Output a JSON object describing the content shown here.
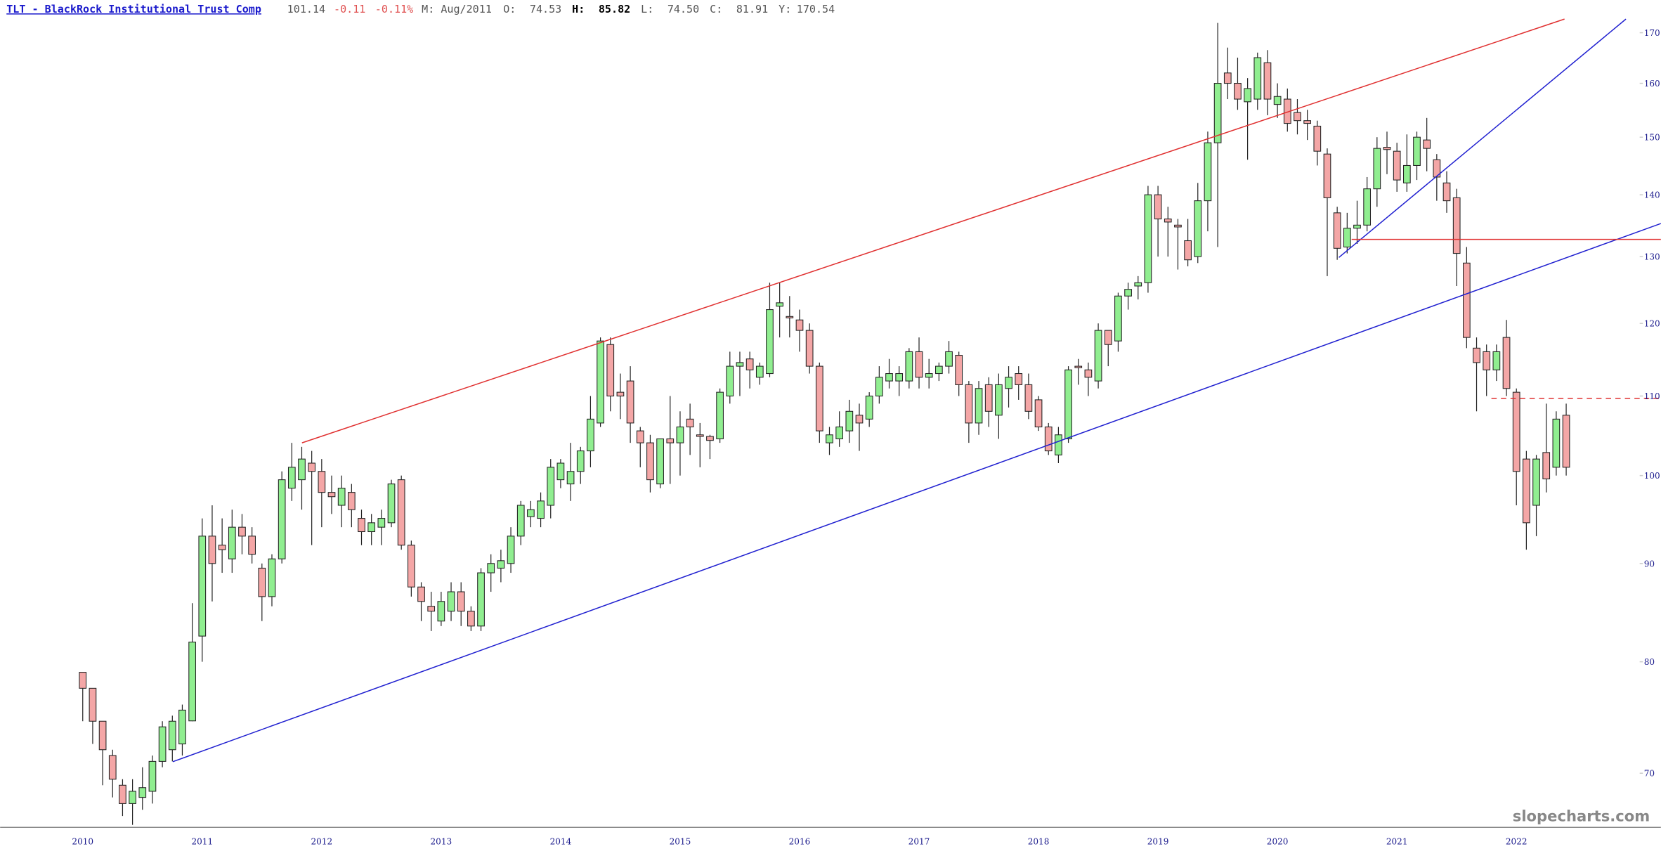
{
  "header": {
    "title": "TLT - BlackRock Institutional Trust Comp",
    "price": "101.14",
    "change": "-0.11",
    "change_pct": "-0.11%",
    "period": "M: Aug/2011",
    "open_label": "O:",
    "open": "74.53",
    "high_label": "H:",
    "high": "85.82",
    "low_label": "L:",
    "low": "74.50",
    "close_label": "C:",
    "close": "81.91",
    "year_label": "Y:",
    "year": "170.54"
  },
  "watermark": "slopecharts.com",
  "chart_data": {
    "type": "candlestick",
    "log_scale": true,
    "up_color": "#90ee90",
    "down_color": "#f4a6a6",
    "ylim": [
      65.6,
      176.8
    ],
    "yticks": [
      70,
      80,
      90,
      100,
      110,
      120,
      130,
      140,
      150,
      160,
      170
    ],
    "categories": [
      "2010",
      null,
      null,
      null,
      null,
      null,
      null,
      null,
      null,
      null,
      null,
      null,
      "2011",
      null,
      null,
      null,
      null,
      null,
      null,
      null,
      null,
      null,
      null,
      null,
      "2012",
      null,
      null,
      null,
      null,
      null,
      null,
      null,
      null,
      null,
      null,
      null,
      "2013",
      null,
      null,
      null,
      null,
      null,
      null,
      null,
      null,
      null,
      null,
      null,
      "2014",
      null,
      null,
      null,
      null,
      null,
      null,
      null,
      null,
      null,
      null,
      null,
      "2015",
      null,
      null,
      null,
      null,
      null,
      null,
      null,
      null,
      null,
      null,
      null,
      "2016",
      null,
      null,
      null,
      null,
      null,
      null,
      null,
      null,
      null,
      null,
      null,
      "2017",
      null,
      null,
      null,
      null,
      null,
      null,
      null,
      null,
      null,
      null,
      null,
      "2018",
      null,
      null,
      null,
      null,
      null,
      null,
      null,
      null,
      null,
      null,
      null,
      "2019",
      null,
      null,
      null,
      null,
      null,
      null,
      null,
      null,
      null,
      null,
      null,
      "2020",
      null,
      null,
      null,
      null,
      null,
      null,
      null,
      null,
      null,
      null,
      null,
      "2021",
      null,
      null,
      null,
      null,
      null,
      null,
      null,
      null,
      null,
      null,
      null,
      "2022",
      null,
      null,
      null,
      null,
      null
    ],
    "open": [
      79,
      77.5,
      74.5,
      71.5,
      69,
      67.5,
      68,
      68.5,
      71,
      72,
      72.5,
      74.53,
      82.5,
      93,
      92,
      90.5,
      94,
      93,
      89.5,
      86.5,
      90.5,
      98.5,
      99.5,
      101.5,
      100.5,
      98,
      96.5,
      98,
      95,
      93.5,
      94,
      94.5,
      99.5,
      92,
      87.5,
      85.5,
      84,
      85,
      87,
      85,
      83.5,
      89,
      89.5,
      90,
      93,
      95.2,
      95,
      96.5,
      99.5,
      99,
      100.5,
      103,
      106.5,
      117,
      110.5,
      112,
      105.5,
      104,
      99,
      104.5,
      104,
      107,
      105,
      104.8,
      104.5,
      110,
      114,
      115,
      112.5,
      113,
      122.5,
      121,
      120.5,
      119,
      114,
      104,
      104.5,
      105.5,
      107.5,
      107,
      110,
      112,
      112,
      112,
      116,
      112.5,
      113,
      114,
      115.5,
      111.5,
      106.5,
      111.5,
      107.5,
      111,
      113,
      111.5,
      109.5,
      106,
      102.5,
      104.5,
      114,
      113.5,
      112,
      119,
      117.5,
      124,
      125.5,
      126,
      140,
      136,
      135,
      132.5,
      130,
      139,
      149,
      162,
      160,
      156.5,
      157,
      164,
      156,
      157,
      154.5,
      153,
      152,
      147,
      137,
      131.5,
      134.5,
      135,
      141,
      148.2,
      147.5,
      142,
      145,
      149.5,
      146,
      142,
      139.5,
      129,
      116.5,
      116,
      113.5,
      118,
      110.5,
      102,
      96.5,
      102.8,
      101,
      107.5
    ],
    "high": [
      79,
      77.5,
      74.5,
      72,
      69.5,
      69.5,
      70.5,
      71.5,
      74.5,
      75,
      76,
      85.82,
      95,
      96.5,
      95,
      96,
      95.5,
      94,
      90,
      91,
      100.5,
      104,
      103.5,
      103,
      102,
      100,
      100,
      99,
      96,
      95.5,
      96,
      99.5,
      100,
      92.5,
      88,
      87,
      87,
      88,
      88,
      85.5,
      89.5,
      91,
      91.5,
      94,
      97,
      97,
      98,
      102,
      102,
      104,
      103.5,
      110,
      118,
      118,
      113,
      114,
      106,
      105,
      104.5,
      110,
      108,
      109,
      106.5,
      105,
      111,
      116,
      116,
      116,
      114.5,
      126,
      126,
      124,
      122,
      120,
      114.5,
      106,
      108,
      109.5,
      109,
      110.5,
      114,
      115,
      114,
      116.5,
      118,
      115,
      114.5,
      117.5,
      116,
      112,
      112,
      112.5,
      113,
      114,
      114,
      113,
      110,
      106.5,
      106,
      114,
      115,
      114.5,
      120,
      119,
      124.5,
      126,
      127,
      141.5,
      141.5,
      138,
      136,
      136,
      142,
      151,
      172,
      167,
      165,
      161,
      166,
      166.5,
      160,
      159,
      157,
      155,
      153,
      148,
      138,
      137,
      139,
      143,
      150,
      151,
      149,
      150.5,
      151,
      153.5,
      147,
      144,
      141,
      131.5,
      118,
      117,
      117,
      120.5,
      111,
      103,
      102.5,
      109,
      108,
      109
    ],
    "low": [
      74.5,
      72.5,
      69,
      68,
      66.5,
      65.8,
      67,
      67.5,
      70.5,
      71,
      71.5,
      74.5,
      80,
      86,
      89,
      89,
      91,
      90,
      84,
      85.5,
      90,
      97,
      96,
      92,
      94,
      95.5,
      94,
      94,
      92,
      92,
      92,
      94,
      91.5,
      86.5,
      84,
      83,
      83.5,
      84,
      83.5,
      83,
      83,
      87,
      88,
      89,
      92,
      94,
      94,
      95,
      98.5,
      97,
      99,
      101,
      106,
      108,
      107,
      104,
      101,
      98,
      98.5,
      99,
      100,
      102.5,
      101,
      102,
      104,
      109,
      110,
      111,
      111.5,
      112.5,
      118,
      118,
      116,
      113,
      104,
      102.5,
      103.5,
      104,
      103,
      106,
      109,
      111,
      110,
      111,
      111,
      111,
      112,
      113,
      110,
      104,
      105,
      106,
      104.5,
      108.5,
      109.5,
      107,
      105.5,
      102.5,
      101.5,
      104,
      111.5,
      110,
      111,
      114,
      116,
      122,
      123.5,
      124.5,
      130,
      130,
      128,
      128.5,
      129,
      134,
      131.5,
      157,
      155,
      146,
      155,
      154,
      153.5,
      151,
      150.5,
      149.5,
      145,
      127,
      129.5,
      130.5,
      132,
      134,
      138,
      143.5,
      140.5,
      140.5,
      142.5,
      144,
      139,
      137,
      125.5,
      116.5,
      108,
      110,
      112,
      110,
      96.5,
      91.5,
      93,
      98,
      100,
      100
    ],
    "close": [
      77.5,
      74.5,
      72,
      69.5,
      67.5,
      68.5,
      68.8,
      71,
      74,
      74.5,
      75.5,
      81.91,
      93,
      90,
      91.5,
      94,
      93,
      91,
      86.5,
      90.5,
      99.5,
      101,
      102,
      100.5,
      98,
      97.5,
      98.5,
      96,
      93.5,
      94.5,
      95,
      99,
      92,
      87.5,
      86,
      85,
      86,
      87,
      85,
      83.5,
      89,
      90,
      90.3,
      93,
      96.5,
      96,
      97,
      101,
      101.5,
      100.5,
      103,
      107,
      117.5,
      110,
      110,
      106.5,
      104,
      99.5,
      104.5,
      104,
      106,
      106,
      104.8,
      104.3,
      110.5,
      114,
      114.5,
      113.5,
      114,
      122,
      123,
      120.8,
      119,
      114,
      105.5,
      105,
      106,
      108,
      106.5,
      110,
      112.5,
      113,
      113,
      116,
      112.5,
      113,
      114,
      116,
      111.5,
      106.5,
      111,
      108,
      111.5,
      112.5,
      111.5,
      108,
      106,
      103,
      105,
      113.5,
      113.8,
      112.5,
      119,
      117,
      124,
      125,
      126,
      140,
      136,
      135.5,
      134.7,
      129.5,
      139,
      149,
      160,
      160,
      157,
      159,
      165,
      157,
      157.5,
      152.5,
      153,
      152.5,
      147.5,
      139.5,
      131.3,
      134.5,
      135,
      141,
      148,
      147.8,
      142.5,
      145,
      150,
      148,
      143,
      139,
      130.5,
      118,
      114.5,
      113.5,
      116,
      111,
      100.5,
      94.5,
      102,
      99.6,
      107,
      101
    ]
  }
}
